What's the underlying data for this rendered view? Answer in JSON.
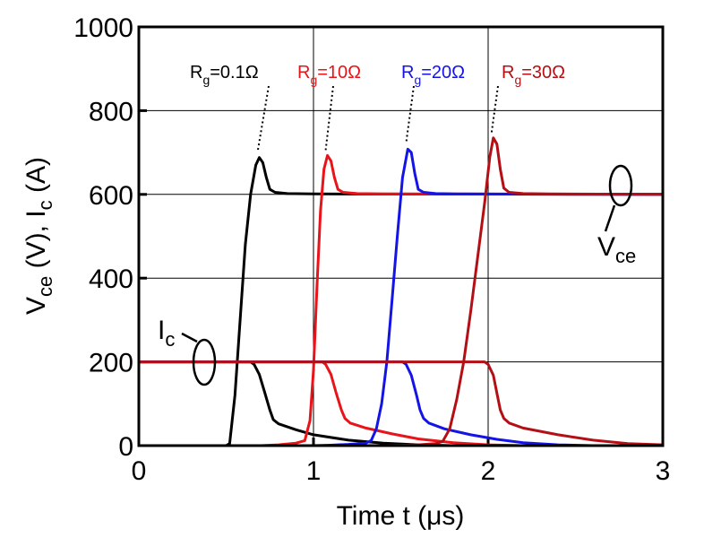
{
  "chart_data": {
    "type": "line",
    "xlabel": "Time t (μs)",
    "ylabel_parts": {
      "main1": "V",
      "sub1": "ce",
      "mid": " (V), I",
      "sub2": "c",
      "end": " (A)"
    },
    "xlim": [
      0,
      3
    ],
    "ylim": [
      0,
      1000
    ],
    "x_ticks": [
      0,
      1,
      2,
      3
    ],
    "y_ticks": [
      0,
      200,
      400,
      600,
      800,
      1000
    ],
    "grid": true,
    "series": [
      {
        "name_parts": {
          "main": "R",
          "sub": "g",
          "rest": "=0.1Ω"
        },
        "color": "#000000",
        "vce": [
          [
            0,
            0
          ],
          [
            0.5,
            0
          ],
          [
            0.52,
            5
          ],
          [
            0.55,
            120
          ],
          [
            0.58,
            300
          ],
          [
            0.61,
            480
          ],
          [
            0.64,
            600
          ],
          [
            0.67,
            670
          ],
          [
            0.69,
            688
          ],
          [
            0.71,
            676
          ],
          [
            0.73,
            640
          ],
          [
            0.75,
            612
          ],
          [
            0.78,
            605
          ],
          [
            0.85,
            602
          ],
          [
            1.0,
            601
          ],
          [
            3.0,
            600
          ]
        ],
        "ic": [
          [
            0,
            200
          ],
          [
            0.64,
            200
          ],
          [
            0.66,
            194
          ],
          [
            0.69,
            170
          ],
          [
            0.72,
            128
          ],
          [
            0.75,
            85
          ],
          [
            0.77,
            62
          ],
          [
            0.8,
            52
          ],
          [
            0.9,
            38
          ],
          [
            1.0,
            26
          ],
          [
            1.2,
            13
          ],
          [
            1.4,
            6
          ],
          [
            1.6,
            2
          ],
          [
            1.8,
            0
          ],
          [
            3.0,
            0
          ]
        ]
      },
      {
        "name_parts": {
          "main": "R",
          "sub": "g",
          "rest": "=10Ω"
        },
        "color": "#e8141a",
        "vce": [
          [
            0,
            0
          ],
          [
            0.7,
            0
          ],
          [
            0.8,
            2
          ],
          [
            0.9,
            6
          ],
          [
            0.95,
            12
          ],
          [
            0.98,
            60
          ],
          [
            1.0,
            180
          ],
          [
            1.02,
            380
          ],
          [
            1.04,
            560
          ],
          [
            1.06,
            660
          ],
          [
            1.08,
            693
          ],
          [
            1.1,
            680
          ],
          [
            1.12,
            640
          ],
          [
            1.14,
            612
          ],
          [
            1.17,
            605
          ],
          [
            1.25,
            602
          ],
          [
            1.4,
            601
          ],
          [
            3.0,
            600
          ]
        ],
        "ic": [
          [
            0,
            200
          ],
          [
            1.05,
            200
          ],
          [
            1.07,
            194
          ],
          [
            1.1,
            170
          ],
          [
            1.13,
            125
          ],
          [
            1.16,
            85
          ],
          [
            1.18,
            65
          ],
          [
            1.21,
            54
          ],
          [
            1.3,
            42
          ],
          [
            1.45,
            28
          ],
          [
            1.6,
            16
          ],
          [
            1.8,
            7
          ],
          [
            2.0,
            2
          ],
          [
            2.2,
            0
          ],
          [
            3.0,
            0
          ]
        ]
      },
      {
        "name_parts": {
          "main": "R",
          "sub": "g",
          "rest": "=20Ω"
        },
        "color": "#1414e6",
        "vce": [
          [
            0,
            0
          ],
          [
            1.0,
            0
          ],
          [
            1.1,
            1
          ],
          [
            1.2,
            3
          ],
          [
            1.3,
            6
          ],
          [
            1.33,
            12
          ],
          [
            1.36,
            40
          ],
          [
            1.39,
            100
          ],
          [
            1.42,
            200
          ],
          [
            1.45,
            350
          ],
          [
            1.48,
            500
          ],
          [
            1.51,
            640
          ],
          [
            1.54,
            708
          ],
          [
            1.56,
            700
          ],
          [
            1.58,
            650
          ],
          [
            1.6,
            612
          ],
          [
            1.63,
            605
          ],
          [
            1.7,
            602
          ],
          [
            1.85,
            601
          ],
          [
            3.0,
            600
          ]
        ],
        "ic": [
          [
            0,
            200
          ],
          [
            1.51,
            200
          ],
          [
            1.53,
            194
          ],
          [
            1.56,
            168
          ],
          [
            1.59,
            120
          ],
          [
            1.61,
            85
          ],
          [
            1.63,
            65
          ],
          [
            1.66,
            54
          ],
          [
            1.75,
            40
          ],
          [
            1.9,
            26
          ],
          [
            2.05,
            15
          ],
          [
            2.2,
            7
          ],
          [
            2.4,
            2
          ],
          [
            2.6,
            0
          ],
          [
            3.0,
            0
          ]
        ]
      },
      {
        "name_parts": {
          "main": "R",
          "sub": "g",
          "rest": "=30Ω"
        },
        "color": "#b30f14",
        "vce": [
          [
            0,
            0
          ],
          [
            1.4,
            0
          ],
          [
            1.6,
            2
          ],
          [
            1.7,
            5
          ],
          [
            1.74,
            10
          ],
          [
            1.78,
            40
          ],
          [
            1.82,
            110
          ],
          [
            1.86,
            200
          ],
          [
            1.9,
            320
          ],
          [
            1.94,
            450
          ],
          [
            1.98,
            580
          ],
          [
            2.01,
            690
          ],
          [
            2.03,
            735
          ],
          [
            2.05,
            720
          ],
          [
            2.07,
            660
          ],
          [
            2.09,
            615
          ],
          [
            2.12,
            605
          ],
          [
            2.2,
            602
          ],
          [
            2.35,
            601
          ],
          [
            3.0,
            600
          ]
        ],
        "ic": [
          [
            0,
            200
          ],
          [
            1.98,
            200
          ],
          [
            2.0,
            194
          ],
          [
            2.03,
            168
          ],
          [
            2.05,
            125
          ],
          [
            2.07,
            85
          ],
          [
            2.09,
            65
          ],
          [
            2.12,
            54
          ],
          [
            2.2,
            42
          ],
          [
            2.4,
            26
          ],
          [
            2.6,
            13
          ],
          [
            2.8,
            5
          ],
          [
            3.0,
            2
          ]
        ]
      }
    ],
    "annotations": {
      "vce_parts": {
        "main": "V",
        "sub": "ce"
      },
      "ic_parts": {
        "main": "I",
        "sub": "c"
      }
    }
  }
}
